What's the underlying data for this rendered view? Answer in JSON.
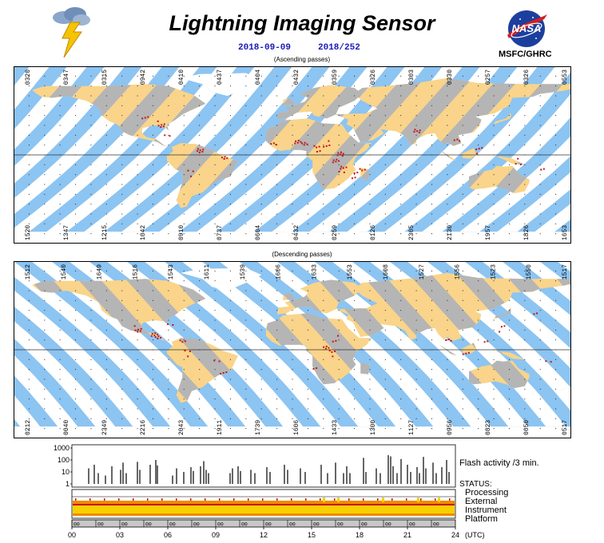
{
  "header": {
    "title": "Lightning Imaging Sensor",
    "date": "2018-09-09",
    "doy": "2018/252",
    "org": "MSFC/GHRC",
    "logo_text": "NASA"
  },
  "maps": {
    "ascending": {
      "caption": "(Ascending passes)",
      "top_labels": [
        "0320",
        "0347",
        "0315",
        "0942",
        "0410",
        "0437",
        "0404",
        "0432",
        "0359",
        "0326",
        "0303",
        "0330",
        "0257",
        "0326",
        "0553"
      ],
      "bottom_labels": [
        "1520",
        "1347",
        "1215",
        "1042",
        "0910",
        "0737",
        "0604",
        "0432",
        "0259",
        "0126",
        "2305",
        "2130",
        "1957",
        "1826",
        "1653"
      ]
    },
    "descending": {
      "caption": "(Descending passes)",
      "top_labels": [
        "1512",
        "1540",
        "1649",
        "1516",
        "1543",
        "1611",
        "1539",
        "1606",
        "1633",
        "1553",
        "1608",
        "1527",
        "1556",
        "1523",
        "1550",
        "1517"
      ],
      "bottom_labels": [
        "0212",
        "0040",
        "2349",
        "2216",
        "2043",
        "1911",
        "1739",
        "1606",
        "1433",
        "1300",
        "1127",
        "0956",
        "0823",
        "0650",
        "0517"
      ]
    }
  },
  "chart_data": {
    "type": "bar",
    "title": "",
    "x_axis": {
      "label": "(UTC)",
      "ticks": [
        "00",
        "03",
        "06",
        "09",
        "12",
        "15",
        "18",
        "21",
        "24"
      ],
      "range": [
        0,
        24
      ]
    },
    "y_axis": {
      "scale": "log",
      "ticks": [
        "1000",
        "100",
        "10",
        "1"
      ],
      "range": [
        1,
        1000
      ]
    },
    "series_label": "Flash activity /3 min.",
    "flash_activity": [
      {
        "t": 1.05,
        "v": 20
      },
      {
        "t": 1.4,
        "v": 40
      },
      {
        "t": 1.65,
        "v": 8
      },
      {
        "t": 2.1,
        "v": 5
      },
      {
        "t": 2.5,
        "v": 30
      },
      {
        "t": 3.05,
        "v": 15
      },
      {
        "t": 3.2,
        "v": 60
      },
      {
        "t": 3.4,
        "v": 8
      },
      {
        "t": 4.1,
        "v": 70
      },
      {
        "t": 4.25,
        "v": 15
      },
      {
        "t": 4.9,
        "v": 40
      },
      {
        "t": 5.25,
        "v": 100
      },
      {
        "t": 5.35,
        "v": 35
      },
      {
        "t": 6.3,
        "v": 5
      },
      {
        "t": 6.55,
        "v": 20
      },
      {
        "t": 7.0,
        "v": 10
      },
      {
        "t": 7.45,
        "v": 25
      },
      {
        "t": 7.6,
        "v": 12
      },
      {
        "t": 8.05,
        "v": 30
      },
      {
        "t": 8.25,
        "v": 80
      },
      {
        "t": 8.4,
        "v": 15
      },
      {
        "t": 8.55,
        "v": 8
      },
      {
        "t": 9.9,
        "v": 8
      },
      {
        "t": 10.05,
        "v": 20
      },
      {
        "t": 10.4,
        "v": 30
      },
      {
        "t": 10.55,
        "v": 12
      },
      {
        "t": 11.2,
        "v": 15
      },
      {
        "t": 11.45,
        "v": 8
      },
      {
        "t": 12.2,
        "v": 25
      },
      {
        "t": 12.4,
        "v": 10
      },
      {
        "t": 13.3,
        "v": 40
      },
      {
        "t": 13.5,
        "v": 15
      },
      {
        "t": 14.3,
        "v": 20
      },
      {
        "t": 14.6,
        "v": 10
      },
      {
        "t": 15.6,
        "v": 40
      },
      {
        "t": 16.0,
        "v": 8
      },
      {
        "t": 16.5,
        "v": 60
      },
      {
        "t": 17.0,
        "v": 8
      },
      {
        "t": 17.2,
        "v": 30
      },
      {
        "t": 17.4,
        "v": 8
      },
      {
        "t": 18.25,
        "v": 150
      },
      {
        "t": 18.4,
        "v": 10
      },
      {
        "t": 19.05,
        "v": 20
      },
      {
        "t": 19.3,
        "v": 8
      },
      {
        "t": 19.8,
        "v": 250
      },
      {
        "t": 19.95,
        "v": 200
      },
      {
        "t": 20.1,
        "v": 30
      },
      {
        "t": 20.35,
        "v": 8
      },
      {
        "t": 20.6,
        "v": 120
      },
      {
        "t": 21.0,
        "v": 40
      },
      {
        "t": 21.2,
        "v": 10
      },
      {
        "t": 21.6,
        "v": 25
      },
      {
        "t": 21.75,
        "v": 8
      },
      {
        "t": 22.0,
        "v": 180
      },
      {
        "t": 22.15,
        "v": 20
      },
      {
        "t": 22.6,
        "v": 60
      },
      {
        "t": 22.8,
        "v": 8
      },
      {
        "t": 23.15,
        "v": 25
      },
      {
        "t": 23.45,
        "v": 100
      },
      {
        "t": 23.6,
        "v": 10
      }
    ],
    "status": {
      "heading": "STATUS:",
      "rows": [
        "Processing",
        "External",
        "Instrument",
        "Platform"
      ]
    },
    "colors": {
      "ocean_band": "#8cc4f2",
      "land_day": "#f9d48a",
      "land_night": "#b5b5b5",
      "lightning": "#c81414",
      "status_yellow": "#f6d000",
      "status_orange": "#f08a00",
      "status_red": "#c81414"
    }
  }
}
